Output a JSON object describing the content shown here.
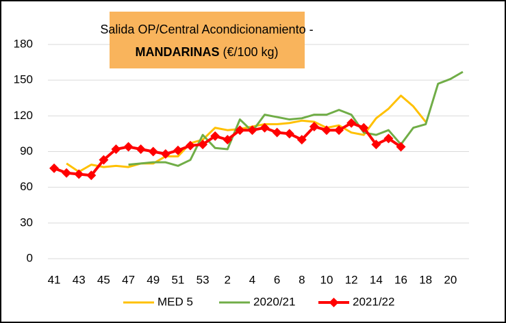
{
  "chart_data": {
    "type": "line",
    "title": [
      "Salida OP/Central Acondicionamiento -",
      "MANDARINAS",
      "(€/100 kg)"
    ],
    "categories": [
      "41",
      null,
      "43",
      null,
      "45",
      null,
      "47",
      null,
      "49",
      null,
      "51",
      null,
      "53",
      null,
      "2",
      null,
      "4",
      null,
      "6",
      null,
      "8",
      null,
      "10",
      null,
      "12",
      null,
      "14",
      null,
      "16",
      null,
      "18",
      null,
      "20",
      null
    ],
    "series": [
      {
        "name": "MED 5",
        "color": "#ffc000",
        "marker": false,
        "values": [
          null,
          80,
          73,
          79,
          77,
          78,
          77,
          80,
          80,
          86,
          86,
          97,
          100,
          110,
          108,
          109,
          111,
          113,
          113,
          114,
          116,
          115,
          110,
          112,
          106,
          104,
          118,
          126,
          137,
          128,
          115,
          null,
          null,
          null
        ]
      },
      {
        "name": "2020/21",
        "color": "#70ad47",
        "marker": false,
        "values": [
          null,
          null,
          null,
          null,
          null,
          null,
          79,
          80,
          81,
          81,
          78,
          83,
          104,
          93,
          92,
          117,
          107,
          121,
          119,
          117,
          118,
          121,
          121,
          125,
          121,
          106,
          104,
          108,
          96,
          110,
          113,
          147,
          151,
          157
        ]
      },
      {
        "name": "2021/22",
        "color": "#ff0000",
        "marker": true,
        "values": [
          76,
          72,
          71,
          70,
          83,
          92,
          94,
          92,
          90,
          88,
          91,
          95,
          96,
          103,
          100,
          108,
          108,
          110,
          106,
          105,
          100,
          111,
          108,
          108,
          114,
          110,
          96,
          101,
          94,
          null,
          null,
          null,
          null,
          null
        ]
      }
    ],
    "ylim": [
      0,
      180
    ],
    "yticks": [
      0,
      30,
      60,
      90,
      120,
      150,
      180
    ],
    "grid": true,
    "legend": "bottom"
  }
}
